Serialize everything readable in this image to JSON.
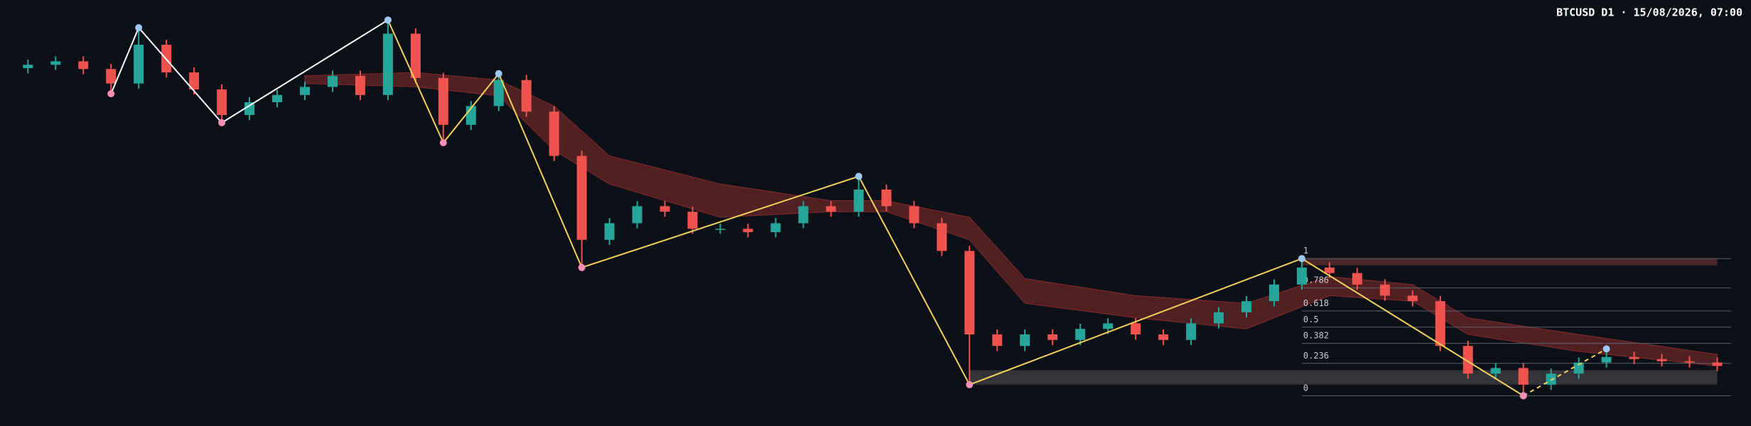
{
  "chart_data": {
    "type": "candlestick",
    "title": "BTCUSD D1 · 15/08/2026, 07:00",
    "ylim": [
      0,
      100
    ],
    "up_color": "#26a69a",
    "down_color": "#ef5350",
    "candles": {
      "open": [
        84.0,
        84.8,
        85.6,
        83.8,
        80.4,
        89.5,
        83.0,
        79.0,
        73.0,
        76.0,
        77.7,
        79.6,
        82.2,
        77.7,
        92.1,
        81.7,
        70.7,
        75.1,
        81.2,
        73.8,
        63.4,
        43.7,
        47.6,
        51.6,
        50.3,
        46.3,
        46.3,
        45.5,
        47.6,
        51.6,
        50.3,
        55.5,
        51.6,
        47.6,
        41.1,
        21.5,
        18.8,
        21.5,
        20.2,
        22.8,
        24.1,
        21.5,
        20.2,
        24.1,
        26.7,
        29.3,
        33.2,
        37.2,
        35.9,
        33.2,
        30.6,
        29.3,
        18.8,
        12.3,
        13.6,
        9.7,
        12.3,
        14.9,
        16.2,
        15.7,
        15.2,
        14.9
      ],
      "high": [
        86.0,
        86.8,
        86.8,
        85.0,
        93.5,
        90.7,
        84.2,
        80.2,
        77.2,
        78.9,
        80.8,
        83.4,
        83.4,
        95.3,
        93.3,
        82.9,
        76.3,
        82.7,
        82.4,
        75.0,
        64.6,
        48.8,
        52.8,
        52.8,
        51.5,
        47.5,
        47.5,
        48.8,
        52.8,
        52.8,
        58.6,
        56.7,
        52.8,
        48.8,
        42.3,
        22.7,
        22.7,
        22.7,
        24.0,
        25.3,
        25.3,
        22.7,
        25.3,
        27.9,
        30.5,
        34.4,
        39.3,
        38.4,
        37.1,
        34.4,
        31.8,
        30.5,
        20.0,
        14.8,
        14.8,
        13.5,
        16.1,
        18.1,
        17.4,
        16.9,
        16.4,
        16.1
      ],
      "low": [
        82.8,
        83.6,
        82.6,
        78.0,
        79.2,
        81.8,
        77.8,
        71.2,
        71.8,
        74.8,
        76.5,
        78.4,
        76.5,
        76.5,
        80.5,
        66.5,
        69.5,
        73.9,
        72.6,
        62.2,
        37.2,
        42.5,
        46.4,
        49.1,
        45.1,
        45.1,
        44.3,
        44.3,
        46.4,
        49.1,
        49.1,
        50.4,
        46.4,
        39.9,
        9.7,
        17.6,
        17.6,
        19.0,
        19.0,
        21.6,
        20.3,
        19.0,
        19.0,
        22.9,
        25.5,
        28.1,
        32.0,
        34.7,
        32.0,
        29.4,
        28.1,
        17.6,
        11.1,
        11.1,
        7.1,
        8.5,
        11.1,
        13.7,
        14.5,
        14.0,
        13.7,
        12.9
      ],
      "close": [
        84.8,
        85.6,
        83.8,
        80.4,
        89.5,
        83.0,
        79.0,
        73.0,
        76.0,
        77.7,
        79.6,
        82.2,
        77.7,
        92.1,
        81.7,
        70.7,
        75.1,
        81.2,
        73.8,
        63.4,
        43.7,
        47.6,
        51.6,
        50.3,
        46.3,
        46.3,
        45.5,
        47.6,
        51.6,
        50.3,
        55.5,
        51.6,
        47.6,
        41.1,
        21.5,
        18.8,
        21.5,
        20.2,
        22.8,
        24.1,
        21.5,
        20.2,
        24.1,
        26.7,
        29.3,
        33.2,
        37.2,
        35.9,
        33.2,
        30.6,
        29.3,
        18.8,
        12.3,
        13.6,
        9.7,
        12.3,
        14.9,
        16.2,
        15.7,
        15.2,
        14.9,
        14.1
      ]
    },
    "band": {
      "color": "#8a2e2e",
      "x": [
        10,
        14,
        17,
        19,
        21,
        25,
        29,
        31,
        34,
        36,
        40,
        44,
        47,
        50,
        52,
        56,
        61
      ],
      "upper": [
        82.2,
        83.0,
        81.2,
        75.1,
        63.4,
        56.8,
        52.9,
        52.9,
        49.0,
        34.6,
        30.6,
        28.8,
        35.1,
        33.2,
        25.4,
        21.5,
        16.8
      ],
      "lower": [
        80.4,
        79.6,
        77.5,
        64.7,
        56.8,
        49.0,
        50.3,
        50.3,
        43.7,
        28.8,
        25.4,
        22.8,
        30.6,
        29.3,
        21.5,
        17.5,
        14.1
      ]
    },
    "zones": [
      {
        "from": 34,
        "to": 61,
        "low": 9.7,
        "high": 13.1,
        "color": "#3a3b3f"
      },
      {
        "from": 46,
        "to": 61,
        "low": 37.7,
        "high": 39.3,
        "color": "#5a2a2c"
      }
    ],
    "zigzag": [
      {
        "color": "#ffffff",
        "dashed": false,
        "x": [
          3,
          4,
          7,
          13
        ],
        "y": [
          78.0,
          93.5,
          71.2,
          95.3
        ]
      },
      {
        "color": "#f2d15c",
        "dashed": false,
        "x": [
          13,
          15,
          17,
          20,
          30,
          34,
          46,
          54
        ],
        "y": [
          95.3,
          66.5,
          82.7,
          37.2,
          58.6,
          9.7,
          39.3,
          7.1
        ]
      },
      {
        "color": "#f2d15c",
        "dashed": true,
        "x": [
          54,
          57
        ],
        "y": [
          7.1,
          18.1
        ]
      }
    ],
    "fib": {
      "levels": [
        1,
        0.786,
        0.618,
        0.5,
        0.382,
        0.236,
        0
      ],
      "low": 7.1,
      "high": 39.3,
      "from": 46,
      "to": 61,
      "color": "#5d6069"
    }
  }
}
